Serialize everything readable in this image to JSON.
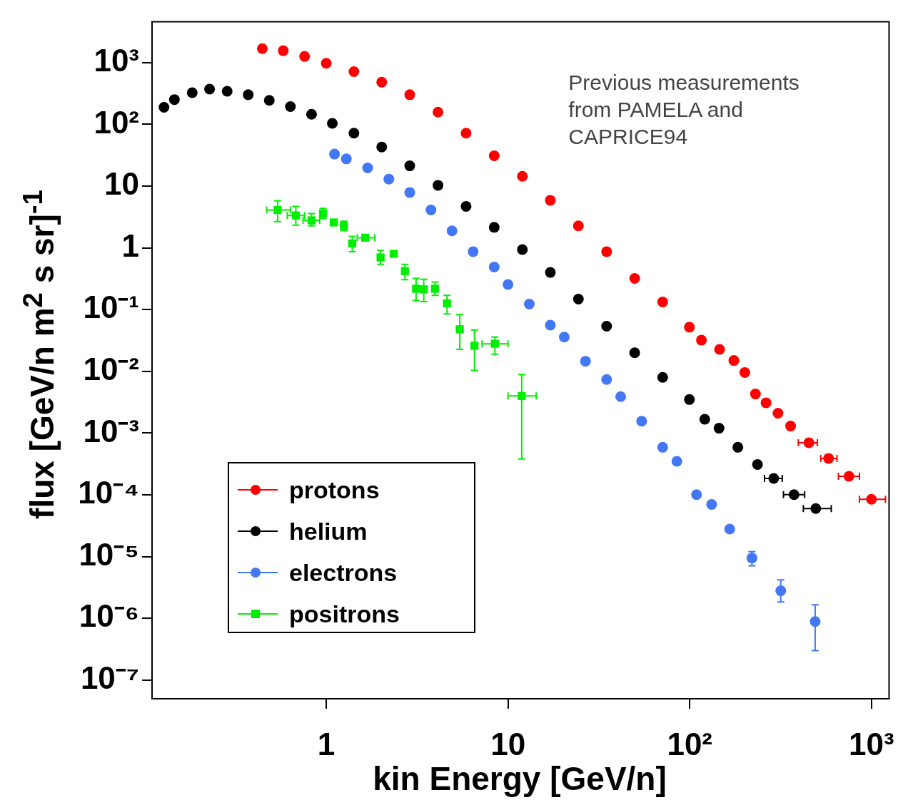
{
  "chart_data": {
    "type": "scatter",
    "xlabel": "kin Energy [GeV/n]",
    "ylabel": "flux  [GeV/n m$^{2}$ s sr]$^{-1}$",
    "annotations": [
      "Previous measurements\nfrom PAMELA and\nCAPRICE94"
    ],
    "log": "xy",
    "legend": "bottom left",
    "xlim": [
      0.11,
      1250
    ],
    "ylim": [
      5e-08,
      4600
    ],
    "xticks": [
      1,
      10,
      {
        "value": 100,
        "label": "10²"
      },
      {
        "value": 1000,
        "label": "10³"
      }
    ],
    "yticks": [
      {
        "value": 1e-07,
        "label": "10⁻⁷"
      },
      {
        "value": 1e-06,
        "label": "10⁻⁶"
      },
      {
        "value": 1e-05,
        "label": "10⁻⁵"
      },
      {
        "value": 0.0001,
        "label": "10⁻⁴"
      },
      {
        "value": 0.001,
        "label": "10⁻³"
      },
      {
        "value": 0.01,
        "label": "10⁻²"
      },
      {
        "value": 0.1,
        "label": "10⁻¹"
      },
      1,
      10,
      {
        "value": 100,
        "label": "10²"
      },
      {
        "value": 1000,
        "label": "10³"
      }
    ],
    "series": [
      {
        "name": "protons",
        "color": "#ff0000",
        "marker": "circle",
        "x": [
          0.445,
          0.58,
          0.76,
          1.0,
          1.42,
          2.02,
          2.88,
          4.12,
          5.88,
          8.4,
          12,
          17.1,
          24.4,
          34.9,
          49.8,
          71,
          99.6,
          116,
          146,
          175,
          201,
          230,
          263,
          306,
          359,
          453,
          581,
          752,
          1000
        ],
        "values": [
          1680,
          1560,
          1260,
          975,
          713,
          483,
          302,
          158,
          72,
          31,
          14.4,
          5.9,
          2.27,
          0.87,
          0.32,
          0.133,
          0.052,
          0.032,
          0.0227,
          0.015,
          0.0096,
          0.0043,
          0.0031,
          0.0021,
          0.0013,
          0.0007,
          0.00039,
          0.0002,
          8.5e-05
        ],
        "xerrors": [
          null,
          null,
          null,
          null,
          null,
          null,
          null,
          null,
          null,
          null,
          null,
          null,
          null,
          null,
          null,
          null,
          null,
          null,
          null,
          null,
          null,
          null,
          null,
          null,
          null,
          [
            396,
            504
          ],
          [
            526,
            646
          ],
          [
            658,
            859
          ],
          [
            859,
            1194
          ]
        ]
      },
      {
        "name": "helium",
        "color": "#000000",
        "marker": "circle",
        "x": [
          0.128,
          0.146,
          0.183,
          0.228,
          0.285,
          0.372,
          0.486,
          0.635,
          0.83,
          1.08,
          1.42,
          2.02,
          2.88,
          4.12,
          5.88,
          8.4,
          12,
          17.1,
          24.4,
          34.9,
          49.8,
          71,
          99.6,
          121,
          145,
          184,
          236,
          290,
          375,
          494
        ],
        "values": [
          189,
          252,
          326,
          372,
          344,
          302,
          245,
          194,
          146,
          104,
          72,
          43,
          21.3,
          10.3,
          4.7,
          2.15,
          0.94,
          0.4,
          0.148,
          0.054,
          0.02,
          0.008,
          0.0035,
          0.00168,
          0.0012,
          0.00059,
          0.00031,
          0.000185,
          0.000101,
          6e-05
        ],
        "xerrors": [
          null,
          null,
          null,
          null,
          null,
          null,
          null,
          null,
          null,
          null,
          null,
          null,
          null,
          null,
          null,
          null,
          null,
          null,
          null,
          null,
          null,
          null,
          null,
          null,
          null,
          null,
          null,
          [
            258,
            323
          ],
          [
            328,
            429
          ],
          [
            422,
            601
          ]
        ]
      },
      {
        "name": "electrons",
        "color": "#4277f5",
        "marker": "circle",
        "x": [
          1.11,
          1.29,
          1.69,
          2.21,
          2.88,
          3.77,
          4.92,
          6.43,
          8.4,
          10,
          13.1,
          17.1,
          20.4,
          26.7,
          34.9,
          41.7,
          54.4,
          71,
          85,
          109,
          132,
          166,
          220,
          317,
          490
        ],
        "values": [
          33,
          27.6,
          19.7,
          13,
          7.9,
          4.1,
          1.89,
          0.87,
          0.49,
          0.255,
          0.123,
          0.056,
          0.036,
          0.0146,
          0.0074,
          0.0039,
          0.00156,
          0.00059,
          0.00035,
          0.000101,
          7e-05,
          2.8e-05,
          9.5e-06,
          2.8e-06,
          8.9e-07
        ],
        "errors": [
          null,
          null,
          null,
          null,
          null,
          null,
          null,
          null,
          null,
          null,
          null,
          null,
          null,
          null,
          null,
          null,
          null,
          null,
          null,
          null,
          null,
          null,
          [
            7.1e-06,
            1.2e-05
          ],
          [
            1.85e-06,
            4.2e-06
          ],
          [
            3e-07,
            1.66e-06
          ]
        ]
      },
      {
        "name": "positrons",
        "color": "#00ee00",
        "marker": "square",
        "x": [
          0.54,
          0.68,
          0.83,
          0.96,
          1.1,
          1.25,
          1.39,
          1.64,
          1.99,
          2.35,
          2.71,
          3.12,
          3.44,
          3.97,
          4.62,
          5.43,
          6.54,
          8.47,
          11.9
        ],
        "values": [
          4.1,
          3.35,
          2.79,
          3.6,
          2.58,
          2.27,
          1.18,
          1.46,
          0.7,
          0.8,
          0.42,
          0.218,
          0.213,
          0.218,
          0.126,
          0.048,
          0.026,
          0.028,
          0.004
        ],
        "errors": [
          [
            2.66,
            5.8
          ],
          [
            2.33,
            4.7
          ],
          [
            2.27,
            3.6
          ],
          [
            3.0,
            4.35
          ],
          null,
          [
            1.9,
            2.7
          ],
          [
            0.87,
            1.54
          ],
          null,
          [
            0.54,
            0.91
          ],
          null,
          [
            0.306,
            0.54
          ],
          [
            0.14,
            0.32
          ],
          [
            0.135,
            0.31
          ],
          [
            0.17,
            0.28
          ],
          [
            0.085,
            0.17
          ],
          [
            0.0227,
            0.083
          ],
          [
            0.0104,
            0.047
          ],
          [
            0.019,
            0.036
          ],
          [
            0.00038,
            0.0089
          ]
        ],
        "xerrors": [
          [
            0.47,
            0.635
          ],
          [
            0.61,
            0.76
          ],
          [
            0.745,
            0.92
          ],
          null,
          null,
          null,
          null,
          [
            1.48,
            1.85
          ],
          null,
          null,
          null,
          null,
          null,
          null,
          null,
          null,
          null,
          [
            7.2,
            10
          ],
          [
            10,
            14.3
          ]
        ]
      }
    ]
  }
}
